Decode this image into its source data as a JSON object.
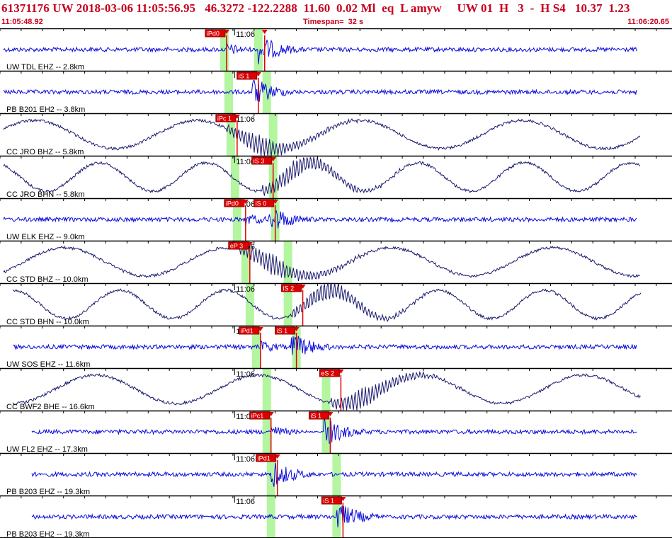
{
  "header": {
    "title": "61371176 UW 2018-03-06 11:05:56.95   46.3272 -122.2288  11.60  0.02 Ml  eq  L amyw     UW 01  H   3  -  H S4   10.37  1.23",
    "start_time": "11:05:48.92",
    "timespan": "Timespan=  32 s",
    "end_time": "11:06:20.65"
  },
  "colors": {
    "title": "#c8001e",
    "trace_z": "#0a0adc",
    "trace_h": "#1a1a6e",
    "pick_box": "#e00000",
    "pick_box_light": "#f0b0b0",
    "window": "#b4f5a0",
    "grid": "#000000"
  },
  "chart_data": {
    "type": "waveform",
    "time_range": [
      "11:05:48.92",
      "11:06:20.65"
    ],
    "minute_tick_label": "11:06",
    "traces": [
      {
        "label": "UW TDL EHZ -- 2.8km",
        "kind": "hf",
        "picks": [
          {
            "name": "iPd0",
            "time": 10.7
          },
          {
            "name": "",
            "time": 12.5
          }
        ],
        "windows": [
          10.6,
          12.2
        ]
      },
      {
        "label": "PB B201 EH2 -- 3.8km",
        "kind": "hf",
        "picks": [
          {
            "name": "iS 1",
            "time": 12.2
          }
        ],
        "windows": [
          10.8,
          12.6
        ]
      },
      {
        "label": "CC JRO BHZ -- 5.8km",
        "kind": "lf",
        "picks": [
          {
            "name": "iPc 1",
            "time": 11.2
          }
        ],
        "windows": [
          10.9,
          12.9
        ]
      },
      {
        "label": "CC JRO BHN -- 5.8km",
        "kind": "lf",
        "picks": [
          {
            "name": "iS 3",
            "time": 12.9
          }
        ],
        "windows": [
          11.1,
          12.9
        ]
      },
      {
        "label": "UW ELK EHZ -- 9.0km",
        "kind": "hf",
        "picks": [
          {
            "name": "iPd0",
            "time": 11.6
          },
          {
            "name": "iS 0",
            "time": 13.0
          }
        ],
        "windows": [
          11.2,
          13.0
        ]
      },
      {
        "label": "CC STD BHZ -- 10.0km",
        "kind": "lf",
        "picks": [
          {
            "name": "eP 3",
            "time": 11.8
          }
        ],
        "windows": [
          11.6,
          13.6
        ]
      },
      {
        "label": "CC STD BHN -- 10.0km",
        "kind": "lf",
        "picks": [
          {
            "name": "iS 2",
            "time": 14.3
          }
        ],
        "windows": [
          11.8,
          13.6
        ]
      },
      {
        "label": "UW SOS EHZ -- 11.6km",
        "kind": "hf",
        "picks": [
          {
            "name": "iPd1",
            "time": 12.3
          },
          {
            "name": "iS 1",
            "time": 14.0
          }
        ],
        "windows": [
          12.1,
          14.0
        ]
      },
      {
        "label": "CC BWF2 BHE -- 16.6km",
        "kind": "lf",
        "picks": [
          {
            "name": "eS 2",
            "time": 16.1
          }
        ],
        "windows": [
          12.6,
          15.4
        ]
      },
      {
        "label": "UW FL2 EHZ -- 17.3km",
        "kind": "hf",
        "picks": [
          {
            "name": "iPc1",
            "time": 12.8
          },
          {
            "name": "iS 1",
            "time": 15.6
          }
        ],
        "windows": [
          12.6,
          15.4
        ]
      },
      {
        "label": "PB B203 EHZ -- 19.3km",
        "kind": "hf",
        "picks": [
          {
            "name": "iPd1",
            "time": 13.1
          }
        ],
        "windows": [
          12.8,
          15.9
        ]
      },
      {
        "label": "PB B203 EH2 -- 19.3km",
        "kind": "hf",
        "picks": [
          {
            "name": "iS 1",
            "time": 16.2
          }
        ],
        "windows": [
          12.8,
          15.9
        ]
      }
    ]
  }
}
